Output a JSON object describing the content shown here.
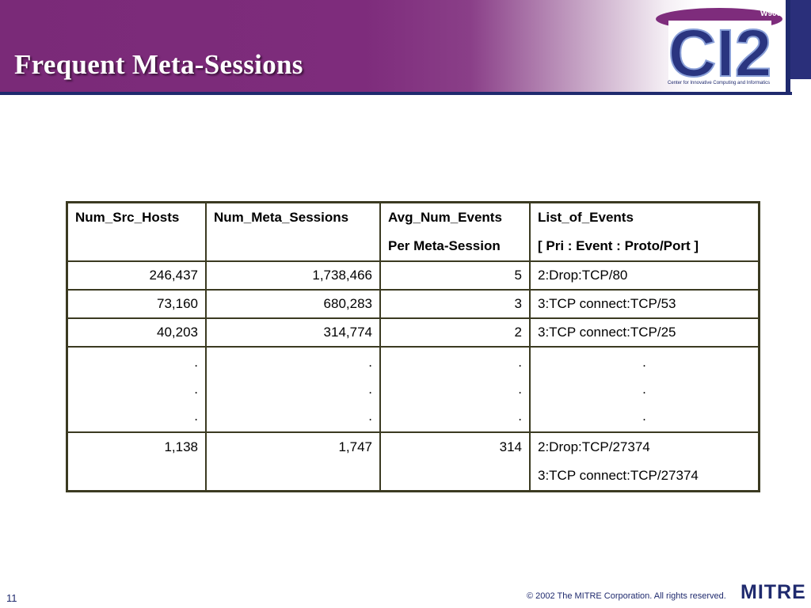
{
  "slide": {
    "title": "Frequent Meta-Sessions",
    "page_number": "11",
    "copyright": "© 2002 The MITRE Corporation. All rights reserved.",
    "footer_logo_text": "MITRE"
  },
  "logo": {
    "main_text": "CI2",
    "badge_text": "W900",
    "subtitle": "Center for Innovative Computing and Informatics"
  },
  "table": {
    "headers": [
      {
        "line1": "Num_Src_Hosts",
        "line2": ""
      },
      {
        "line1": "Num_Meta_Sessions",
        "line2": ""
      },
      {
        "line1": "Avg_Num_Events",
        "line2": "Per Meta-Session"
      },
      {
        "line1": "List_of_Events",
        "line2": "[ Pri : Event : Proto/Port ]"
      }
    ],
    "rows": [
      {
        "src_hosts": "246,437",
        "meta_sessions": "1,738,466",
        "avg_events": "5",
        "events": [
          "2:Drop:TCP/80"
        ]
      },
      {
        "src_hosts": "73,160",
        "meta_sessions": "680,283",
        "avg_events": "3",
        "events": [
          "3:TCP connect:TCP/53"
        ]
      },
      {
        "src_hosts": "40,203",
        "meta_sessions": "314,774",
        "avg_events": "2",
        "events": [
          "3:TCP connect:TCP/25"
        ]
      },
      {
        "src_hosts": "1,138",
        "meta_sessions": "1,747",
        "avg_events": "314",
        "events": [
          "2:Drop:TCP/27374",
          "3:TCP connect:TCP/27374"
        ]
      }
    ],
    "ellipsis": "."
  }
}
